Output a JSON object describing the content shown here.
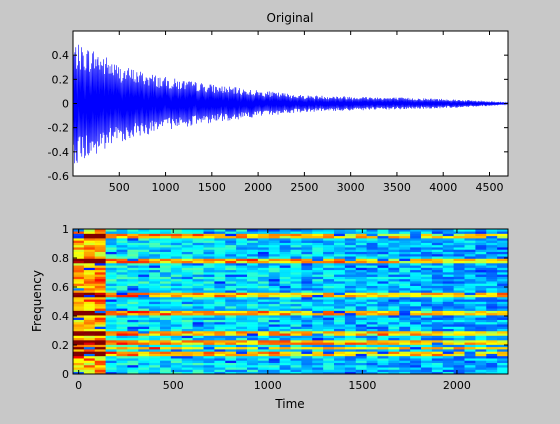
{
  "colors": {
    "figure_background": "#c8c8c8",
    "signal_line": "#0000ff",
    "axes_background": "#ffffff"
  },
  "chart_data": [
    {
      "type": "line",
      "title": "Original",
      "xlabel": "",
      "ylabel": "",
      "xlim": [
        0,
        4700
      ],
      "ylim": [
        -0.6,
        0.6
      ],
      "x_ticks": [
        "500",
        "1000",
        "1500",
        "2000",
        "2500",
        "3000",
        "3500",
        "4000",
        "4500"
      ],
      "y_ticks": [
        "0.4",
        "0.2",
        "0",
        "-0.2",
        "-0.4",
        "-0.6"
      ],
      "grid": false,
      "series": [
        {
          "description": "decaying oscillation; envelope amplitude by sample index",
          "envelope_x": [
            0,
            250,
            500,
            1000,
            1500,
            2000,
            2500,
            3000,
            3500,
            4000,
            4500,
            4700
          ],
          "envelope_y": [
            0.5,
            0.45,
            0.32,
            0.22,
            0.16,
            0.11,
            0.07,
            0.06,
            0.05,
            0.04,
            0.02,
            0.01
          ]
        }
      ]
    },
    {
      "type": "heatmap",
      "title": "",
      "xlabel": "Time",
      "ylabel": "Frequency",
      "xlim": [
        -30,
        2270
      ],
      "ylim": [
        0,
        1
      ],
      "x_ticks": [
        "0",
        "500",
        "1000",
        "1500",
        "2000"
      ],
      "y_ticks": [
        "1",
        "0.8",
        "0.6",
        "0.4",
        "0.2",
        "0"
      ],
      "colormap": "jet",
      "high_energy_frequencies": [
        0.14,
        0.18,
        0.22,
        0.28,
        0.42,
        0.55,
        0.78,
        0.95
      ]
    }
  ]
}
